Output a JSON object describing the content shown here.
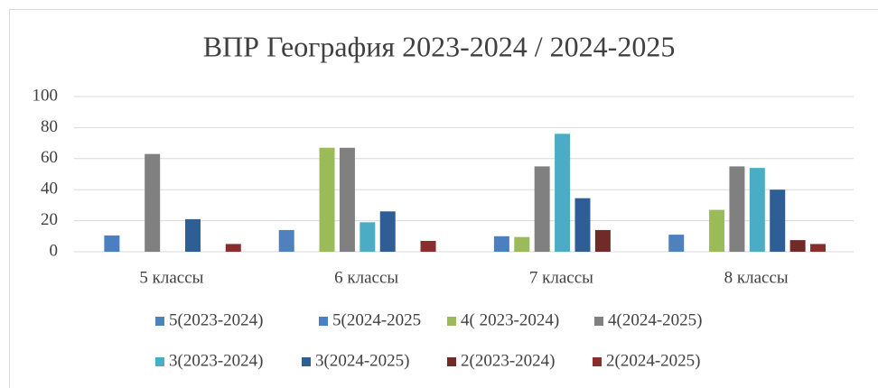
{
  "chart_data": {
    "type": "bar",
    "title": "ВПР География 2023-2024 / 2024-2025",
    "categories": [
      "5 классы",
      "6 классы",
      "7 классы",
      "8 классы"
    ],
    "series": [
      {
        "name": "5(2023-2024)",
        "color": "#4f81bd",
        "values": [
          null,
          14,
          null,
          11
        ]
      },
      {
        "name": "5(2024-2025",
        "color": "#4a7fc1",
        "values": [
          10.5,
          null,
          10,
          null
        ]
      },
      {
        "name": "4( 2023-2024)",
        "color": "#9bbb59",
        "values": [
          null,
          67,
          9.5,
          27
        ]
      },
      {
        "name": "4(2024-2025)",
        "color": "#808080",
        "values": [
          63,
          67,
          55,
          55
        ]
      },
      {
        "name": "3(2023-2024)",
        "color": "#4bacc6",
        "values": [
          null,
          19,
          76,
          54
        ]
      },
      {
        "name": "3(2024-2025)",
        "color": "#2f5d95",
        "values": [
          21,
          26,
          34.5,
          40
        ]
      },
      {
        "name": "2(2023-2024)",
        "color": "#722a28",
        "values": [
          null,
          null,
          14,
          7.5
        ]
      },
      {
        "name": "2(2024-2025)",
        "color": "#8b2d2d",
        "values": [
          5,
          7,
          null,
          5
        ]
      }
    ],
    "ylim": [
      0,
      100
    ],
    "yticks": [
      0,
      20,
      40,
      60,
      80,
      100
    ],
    "grid": true,
    "legend": "bottom"
  }
}
